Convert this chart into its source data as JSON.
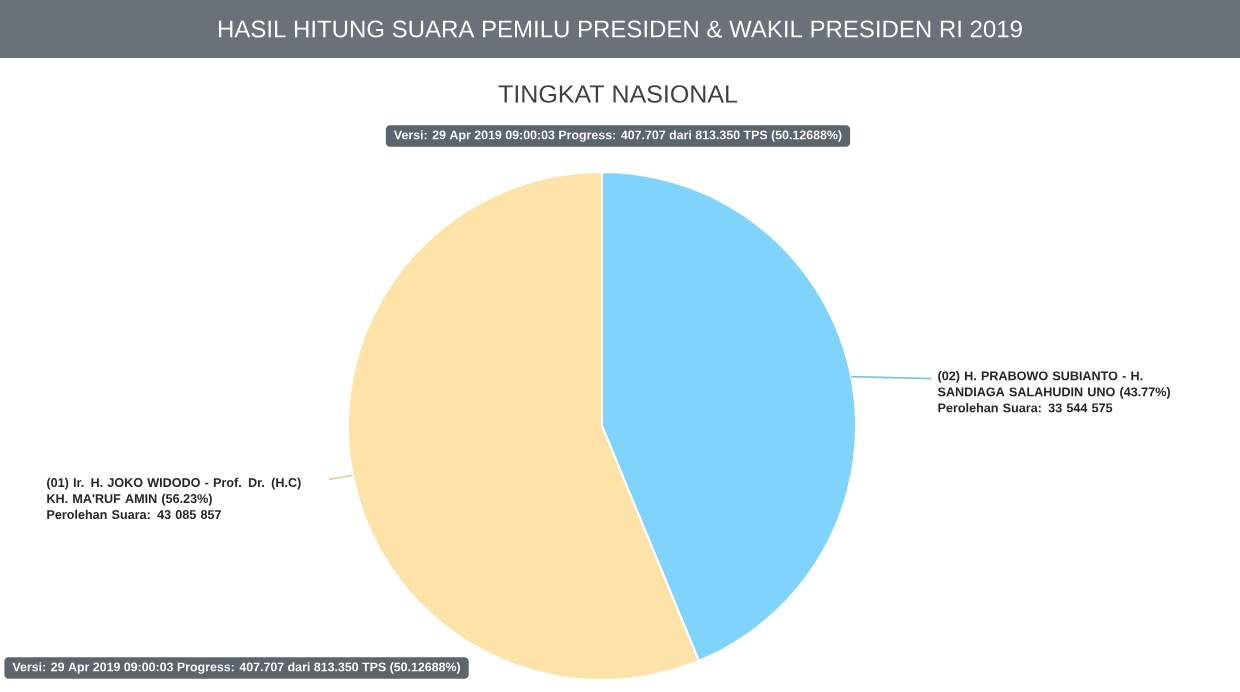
{
  "chart_data": {
    "type": "pie",
    "title": "HASIL HITUNG SUARA PEMILU PRESIDEN & WAKIL PRESIDEN RI 2019",
    "subtitle": "TINGKAT NASIONAL",
    "categories": [
      "(02) H. PRABOWO SUBIANTO - H. SANDIAGA SALAHUDIN UNO (43.77%)",
      "(01) Ir. H. JOKO WIDODO - Prof. Dr. (H.C) KH. MA'RUF AMIN (56.23%)"
    ],
    "values": [
      33544575,
      43085857
    ],
    "colors": [
      "#80d4fc",
      "#fde3a7"
    ],
    "value_labels": [
      "Perolehan Suara: 33 544 575",
      "Perolehan Suara: 43 085 857"
    ],
    "annotations": [
      "Versi: 29 Apr 2019 09:00:03 Progress: 407.707 dari 813.350 TPS (50.12688%)",
      "Versi: 29 Apr 2019 09:00:03 Progress: 407.707 dari 813.350 TPS (50.12688%)"
    ]
  }
}
